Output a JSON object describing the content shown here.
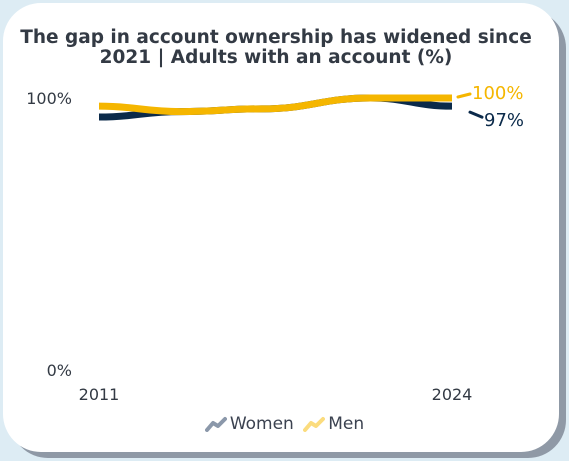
{
  "chart_data": {
    "type": "line",
    "title": "The gap in account ownership has widened since 2021 | Adults with an account (%)",
    "x_tick_labels": [
      "2011",
      "2024"
    ],
    "y_tick_labels": [
      "100%",
      "0%"
    ],
    "ylim": [
      0,
      100
    ],
    "x": [
      2011,
      2014,
      2017,
      2021,
      2024
    ],
    "series": [
      {
        "name": "Women",
        "values": [
          93,
          95,
          96,
          100,
          97
        ],
        "end_label": "97%",
        "color": "#0b2a4a"
      },
      {
        "name": "Men",
        "values": [
          97,
          95,
          96,
          100,
          100
        ],
        "end_label": "100%",
        "color": "#f5b600"
      }
    ],
    "grid": false,
    "legend_position": "bottom-center"
  }
}
